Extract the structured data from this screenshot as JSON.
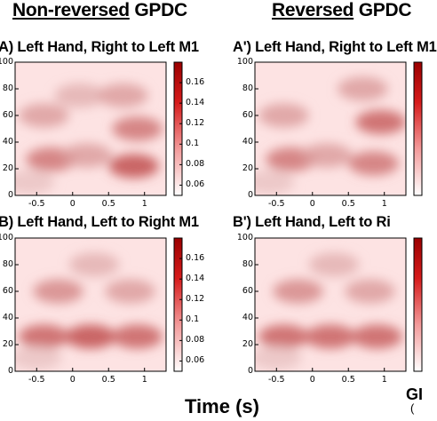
{
  "column_titles": [
    {
      "underlined": "Non-reversed",
      "rest": " GPDC"
    },
    {
      "underlined": "Reversed",
      "rest": " GPDC"
    }
  ],
  "xlabel": "Time (s)",
  "bottom_right_label": "GI",
  "bottom_right_sublabel": "(",
  "chart_data": [
    {
      "type": "heatmap",
      "panel": "A",
      "title": "A) Left Hand, Right to Left M1",
      "x_range": [
        -0.8,
        1.3
      ],
      "y_range": [
        0,
        100
      ],
      "x_ticks": [
        -0.5,
        0,
        0.5,
        1
      ],
      "y_ticks": [
        0,
        20,
        40,
        60,
        80,
        100
      ],
      "colorbar": {
        "ticks": [
          0.06,
          0.08,
          0.1,
          0.12,
          0.14,
          0.16
        ],
        "range": [
          0.05,
          0.18
        ],
        "colors": [
          "#ffffff",
          "#b30000"
        ]
      },
      "features": [
        {
          "x": 0.85,
          "y": 22,
          "value": 0.14
        },
        {
          "x": -0.3,
          "y": 27,
          "value": 0.12
        },
        {
          "x": 0.2,
          "y": 30,
          "value": 0.1
        },
        {
          "x": 0.9,
          "y": 50,
          "value": 0.12
        },
        {
          "x": -0.4,
          "y": 60,
          "value": 0.1
        },
        {
          "x": -0.6,
          "y": 10,
          "value": 0.08
        },
        {
          "x": 0.1,
          "y": 75,
          "value": 0.09
        },
        {
          "x": 0.7,
          "y": 75,
          "value": 0.1
        }
      ]
    },
    {
      "type": "heatmap",
      "panel": "A'",
      "title": "A') Left Hand, Right to Left M1",
      "x_range": [
        -0.8,
        1.3
      ],
      "y_range": [
        0,
        100
      ],
      "x_ticks": [
        -0.5,
        0,
        0.5,
        1
      ],
      "y_ticks": [
        0,
        20,
        40,
        60,
        80,
        100
      ],
      "features": [
        {
          "x": 0.85,
          "y": 24,
          "value": 0.12
        },
        {
          "x": -0.3,
          "y": 27,
          "value": 0.12
        },
        {
          "x": 0.2,
          "y": 30,
          "value": 0.1
        },
        {
          "x": 0.95,
          "y": 55,
          "value": 0.13
        },
        {
          "x": -0.4,
          "y": 60,
          "value": 0.1
        },
        {
          "x": -0.6,
          "y": 10,
          "value": 0.08
        },
        {
          "x": 0.7,
          "y": 80,
          "value": 0.1
        }
      ]
    },
    {
      "type": "heatmap",
      "panel": "B",
      "title": "B) Left Hand, Left to Right M1",
      "x_range": [
        -0.8,
        1.3
      ],
      "y_range": [
        0,
        100
      ],
      "x_ticks": [
        -0.5,
        0,
        0.5,
        1
      ],
      "y_ticks": [
        0,
        20,
        40,
        60,
        80,
        100
      ],
      "colorbar": {
        "ticks": [
          0.06,
          0.08,
          0.1,
          0.12,
          0.14,
          0.16
        ],
        "range": [
          0.05,
          0.18
        ],
        "colors": [
          "#ffffff",
          "#b30000"
        ]
      },
      "features": [
        {
          "x": 0.25,
          "y": 26,
          "value": 0.14
        },
        {
          "x": -0.4,
          "y": 26,
          "value": 0.13
        },
        {
          "x": 0.9,
          "y": 26,
          "value": 0.13
        },
        {
          "x": -0.2,
          "y": 60,
          "value": 0.11
        },
        {
          "x": 0.8,
          "y": 60,
          "value": 0.1
        },
        {
          "x": -0.5,
          "y": 10,
          "value": 0.08
        },
        {
          "x": 0.3,
          "y": 80,
          "value": 0.09
        }
      ]
    },
    {
      "type": "heatmap",
      "panel": "B'",
      "title": "B') Left Hand, Left to Ri",
      "x_range": [
        -0.8,
        1.3
      ],
      "y_range": [
        0,
        100
      ],
      "x_ticks": [
        -0.5,
        0,
        0.5,
        1
      ],
      "y_ticks": [
        0,
        20,
        40,
        60,
        80,
        100
      ],
      "features": [
        {
          "x": 0.25,
          "y": 26,
          "value": 0.13
        },
        {
          "x": -0.4,
          "y": 26,
          "value": 0.13
        },
        {
          "x": 0.9,
          "y": 26,
          "value": 0.13
        },
        {
          "x": -0.2,
          "y": 60,
          "value": 0.11
        },
        {
          "x": 0.8,
          "y": 60,
          "value": 0.1
        },
        {
          "x": -0.5,
          "y": 10,
          "value": 0.08
        },
        {
          "x": 0.3,
          "y": 80,
          "value": 0.09
        }
      ]
    }
  ]
}
